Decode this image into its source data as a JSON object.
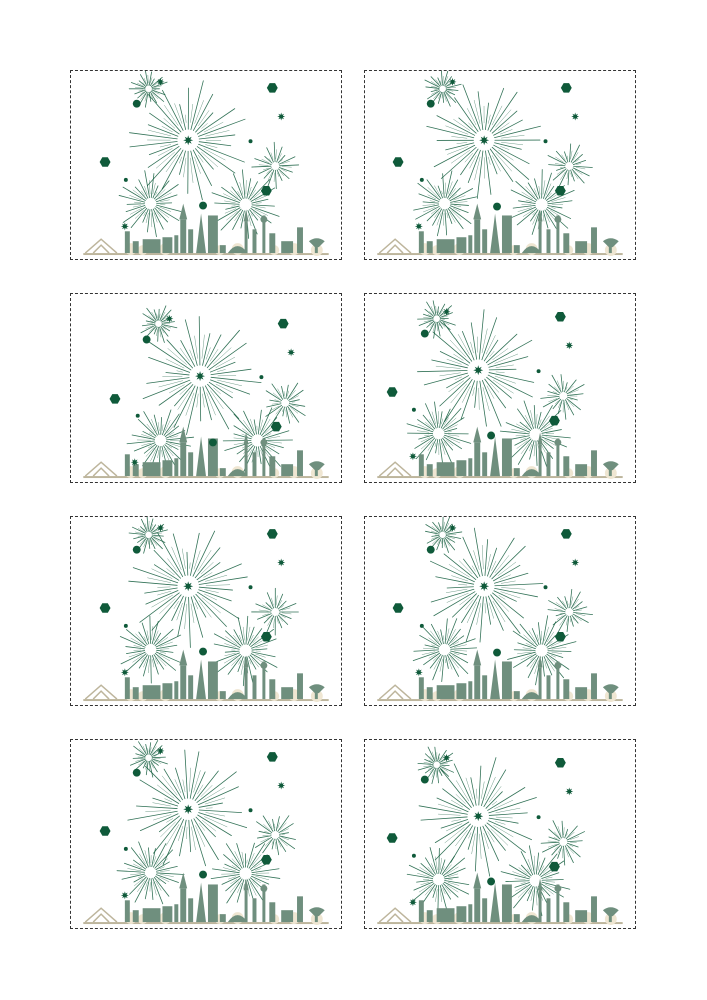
{
  "sheet": {
    "cards": [
      {
        "variant": "a"
      },
      {
        "variant": "b"
      },
      {
        "variant": "c"
      },
      {
        "variant": "d"
      },
      {
        "variant": "a"
      },
      {
        "variant": "b"
      },
      {
        "variant": "a"
      },
      {
        "variant": "d"
      }
    ]
  },
  "colors": {
    "firework": "#0f5a3a",
    "hexagon": "#0f5a3a",
    "skyline": "#6f8f7e",
    "foliage": "#efe6d2",
    "ground": "#bdb59c",
    "border": "#333333"
  },
  "icons": {
    "burst": "firework-burst-icon",
    "star": "star-icon",
    "hexagon": "hexagon-icon",
    "skyline": "city-skyline-icon"
  }
}
